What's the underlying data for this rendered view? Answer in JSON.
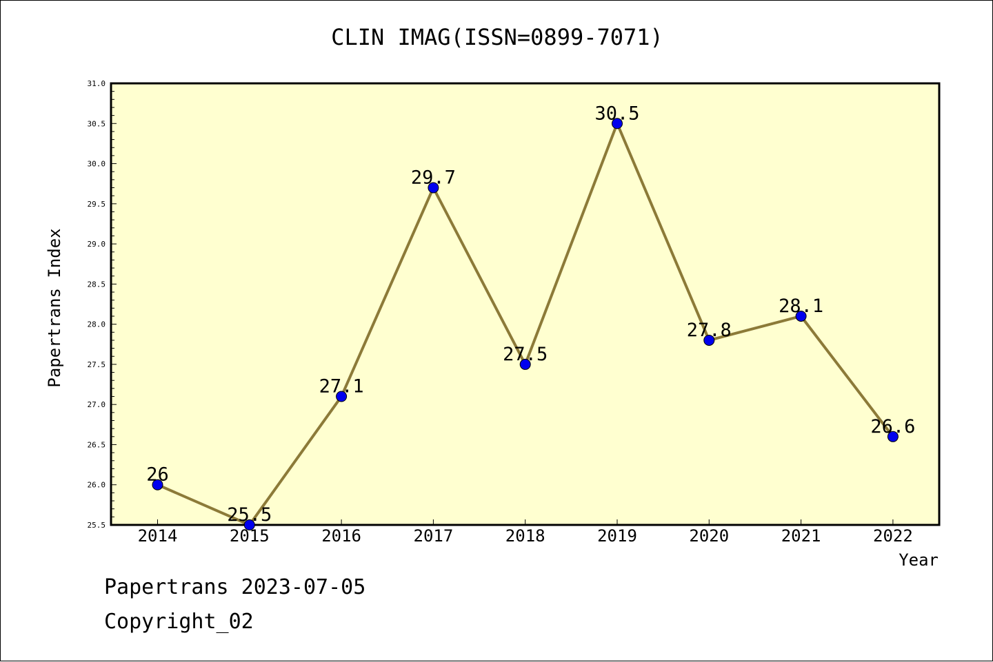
{
  "chart_data": {
    "type": "line",
    "title": "CLIN IMAG(ISSN=0899-7071)",
    "xlabel": "Year",
    "ylabel": "Papertrans Index",
    "categories": [
      "2014",
      "2015",
      "2016",
      "2017",
      "2018",
      "2019",
      "2020",
      "2021",
      "2022"
    ],
    "values": [
      26,
      25.5,
      27.1,
      29.7,
      27.5,
      30.5,
      27.8,
      28.1,
      26.6
    ],
    "data_labels": [
      "26",
      "25.5",
      "27.1",
      "29.7",
      "27.5",
      "30.5",
      "27.8",
      "28.1",
      "26.6"
    ],
    "ylim": [
      25.5,
      31.0
    ],
    "yticks": [
      "25.5",
      "26.0",
      "26.5",
      "27.0",
      "27.5",
      "28.0",
      "28.5",
      "29.0",
      "29.5",
      "30.0",
      "30.5",
      "31.0"
    ],
    "grid": false,
    "colors": {
      "plot_background": "#ffffd0",
      "line": "#8c7a38",
      "marker": "#0000ee"
    }
  },
  "footer": {
    "line1": "Papertrans 2023-07-05",
    "line2": "Copyright_02"
  }
}
